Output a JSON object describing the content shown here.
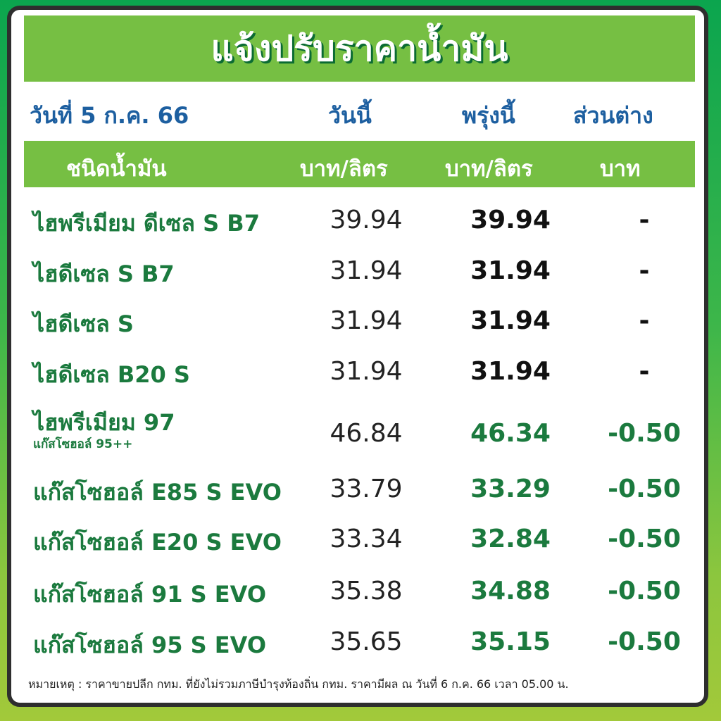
{
  "title": "แจ้งปรับราคาน้ำมัน",
  "header": {
    "date": "วันที่ 5 ก.ค. 66",
    "today": "วันนี้",
    "tomorrow": "พรุ่งนี้",
    "diff": "ส่วนต่าง"
  },
  "units": {
    "type": "ชนิดน้ำมัน",
    "today": "บาท/ลิตร",
    "tomorrow": "บาท/ลิตร",
    "diff": "บาท"
  },
  "rows": [
    {
      "name": "ไฮพรีเมียม ดีเซล S B7",
      "today": "39.94",
      "tomorrow": "39.94",
      "diff": "-"
    },
    {
      "name": "ไฮดีเซล S B7",
      "today": "31.94",
      "tomorrow": "31.94",
      "diff": "-"
    },
    {
      "name": "ไฮดีเซล S",
      "today": "31.94",
      "tomorrow": "31.94",
      "diff": "-"
    },
    {
      "name": "ไฮดีเซล B20 S",
      "today": "31.94",
      "tomorrow": "31.94",
      "diff": "-"
    },
    {
      "name": "ไฮพรีเมียม 97",
      "sub": "แก๊สโซฮอล์ 95++",
      "today": "46.84",
      "tomorrow": "46.34",
      "diff": "-0.50"
    },
    {
      "name": "แก๊สโซฮอล์ E85 S EVO",
      "today": "33.79",
      "tomorrow": "33.29",
      "diff": "-0.50"
    },
    {
      "name": "แก๊สโซฮอล์ E20 S EVO",
      "today": "33.34",
      "tomorrow": "32.84",
      "diff": "-0.50"
    },
    {
      "name": "แก๊สโซฮอล์ 91 S EVO",
      "today": "35.38",
      "tomorrow": "34.88",
      "diff": "-0.50"
    },
    {
      "name": "แก๊สโซฮอล์ 95 S EVO",
      "today": "35.65",
      "tomorrow": "35.15",
      "diff": "-0.50"
    }
  ],
  "note": "หมายเหตุ :  ราคาขายปลีก กทม. ที่ยังไม่รวมภาษีบำรุงท้องถิ่น  กทม.  ราคามีผล ณ วันที่ 6 ก.ค. 66 เวลา 05.00 น.",
  "colors": {
    "title_bar": "#76bf43",
    "header_blue": "#1d5fa0",
    "name_green": "#1b7a3e"
  }
}
